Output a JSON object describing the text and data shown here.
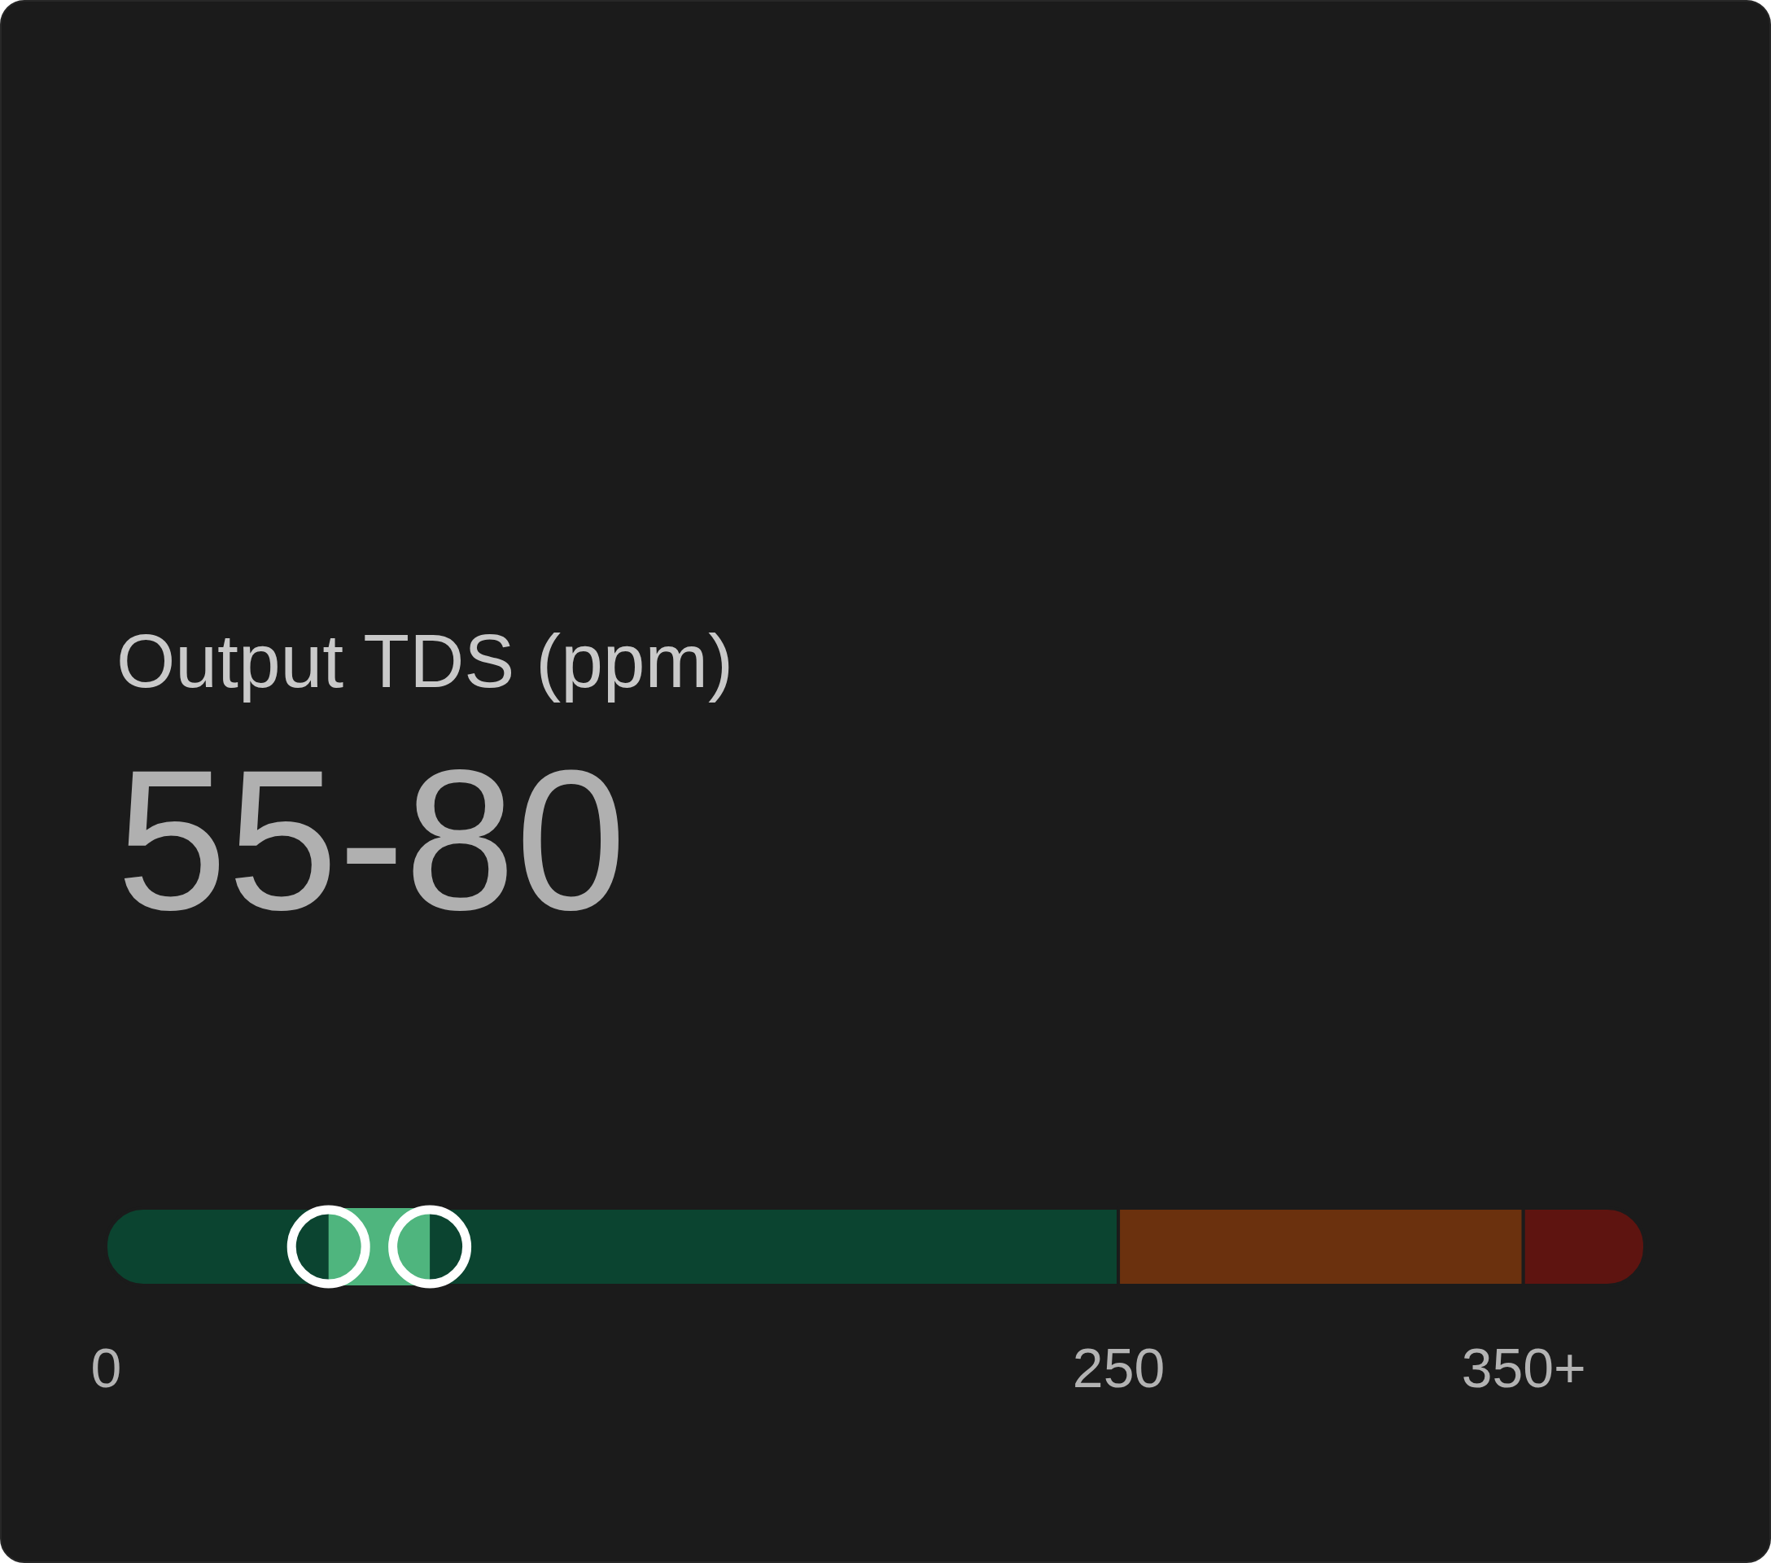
{
  "chart_data": {
    "type": "bar",
    "orientation": "horizontal",
    "title": "Output TDS (ppm)",
    "subtitle": "55-80",
    "categories": [
      null
    ],
    "base": [
      55
    ],
    "values": [
      25
    ],
    "color": "#4fb57e",
    "xlim": [
      0,
      380
    ],
    "xticks": [
      0,
      250,
      {
        "value": 350,
        "label": "350+"
      }
    ],
    "bands": [
      {
        "axis": "x",
        "from": 0,
        "to": 250,
        "color": "#0b4430"
      },
      {
        "axis": "x",
        "from": 250,
        "to": 350,
        "color": "#6b310e"
      },
      {
        "axis": "x",
        "from": 350,
        "to": 380,
        "color": "#5e1410"
      }
    ],
    "marker": "circle",
    "tick_labels": "x"
  }
}
